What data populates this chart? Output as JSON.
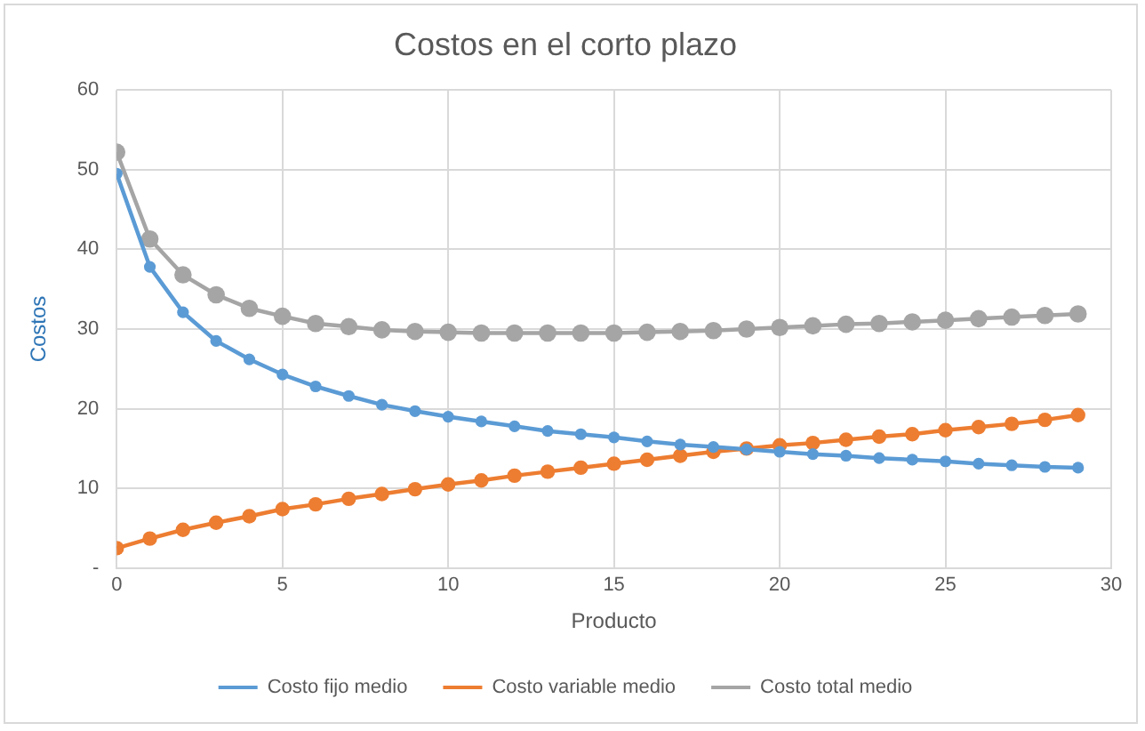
{
  "chart_data": {
    "type": "line",
    "title": "Costos en el corto plazo",
    "xlabel": "Producto",
    "ylabel": "Costos",
    "x": [
      0,
      1,
      2,
      3,
      4,
      5,
      6,
      7,
      8,
      9,
      10,
      11,
      12,
      13,
      14,
      15,
      16,
      17,
      18,
      19,
      20,
      21,
      22,
      23,
      24,
      25,
      26,
      27,
      28,
      29
    ],
    "xlim": [
      0,
      30
    ],
    "xticks": [
      0,
      5,
      10,
      15,
      20,
      25,
      30
    ],
    "ylim": [
      0,
      60
    ],
    "yticks": [
      {
        "value": 0,
        "label": "-"
      },
      10,
      20,
      30,
      40,
      50,
      60
    ],
    "grid": true,
    "legend": "bottom",
    "marker": "circle",
    "line_style": "solid",
    "series": [
      {
        "name": "Costo fijo medio",
        "color": "#5b9bd5",
        "values": [
          49.5,
          37.8,
          32.1,
          28.5,
          26.2,
          24.3,
          22.8,
          21.6,
          20.5,
          19.7,
          19.0,
          18.4,
          17.8,
          17.2,
          16.8,
          16.4,
          15.9,
          15.5,
          15.2,
          14.9,
          14.6,
          14.3,
          14.1,
          13.8,
          13.6,
          13.4,
          13.1,
          12.9,
          12.7,
          12.6
        ]
      },
      {
        "name": "Costo variable medio",
        "color": "#ed7d31",
        "values": [
          2.5,
          3.7,
          4.8,
          5.7,
          6.5,
          7.4,
          8.0,
          8.7,
          9.3,
          9.9,
          10.5,
          11.0,
          11.6,
          12.1,
          12.6,
          13.1,
          13.6,
          14.1,
          14.6,
          15.0,
          15.4,
          15.7,
          16.1,
          16.5,
          16.8,
          17.3,
          17.7,
          18.1,
          18.6,
          19.2
        ]
      },
      {
        "name": "Costo total medio",
        "color": "#a5a5a5",
        "values": [
          52.2,
          41.3,
          36.8,
          34.3,
          32.6,
          31.6,
          30.7,
          30.3,
          29.9,
          29.7,
          29.6,
          29.5,
          29.5,
          29.5,
          29.5,
          29.5,
          29.6,
          29.7,
          29.8,
          30.0,
          30.2,
          30.4,
          30.6,
          30.7,
          30.9,
          31.1,
          31.3,
          31.5,
          31.7,
          31.9
        ]
      }
    ]
  }
}
